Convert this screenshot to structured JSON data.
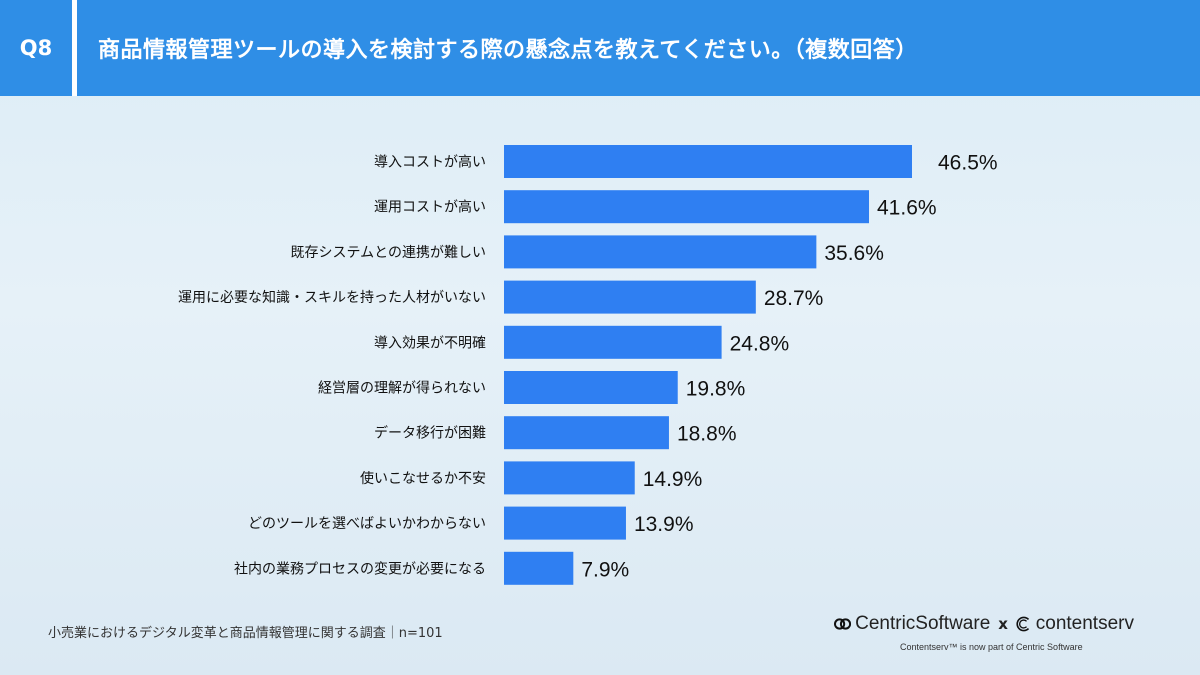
{
  "header": {
    "q_label": "Q8",
    "title": "商品情報管理ツールの導入を検討する際の懸念点を教えてください。（複数回答）"
  },
  "chart_data": {
    "type": "bar",
    "orientation": "horizontal",
    "categories": [
      "導入コストが高い",
      "運用コストが高い",
      "既存システムとの連携が難しい",
      "運用に必要な知識・スキルを持った人材がいない",
      "導入効果が不明確",
      "経営層の理解が得られない",
      "データ移行が困難",
      "使いこなせるか不安",
      "どのツールを選べばよいかわからない",
      "社内の業務プロセスの変更が必要になる"
    ],
    "values": [
      46.5,
      41.6,
      35.6,
      28.7,
      24.8,
      19.8,
      18.8,
      14.9,
      13.9,
      7.9
    ],
    "value_labels": [
      "46.5%",
      "41.6%",
      "35.6%",
      "28.7%",
      "24.8%",
      "19.8%",
      "18.8%",
      "14.9%",
      "13.9%",
      "7.9%"
    ],
    "unit": "%",
    "xlim": [
      0,
      100
    ],
    "bar_color": "#2f7ff2",
    "grid": false
  },
  "footnote": "小売業におけるデジタル変革と商品情報管理に関する調査｜n=101",
  "logos": {
    "centric": "CentricSoftware",
    "times": "x",
    "contentserv": "contentserv",
    "tagline": "Contentserv™ is now part of Centric Software"
  },
  "colors": {
    "header_bg": "#2f8ee6",
    "bar": "#2f7ff2",
    "text": "#111111"
  }
}
